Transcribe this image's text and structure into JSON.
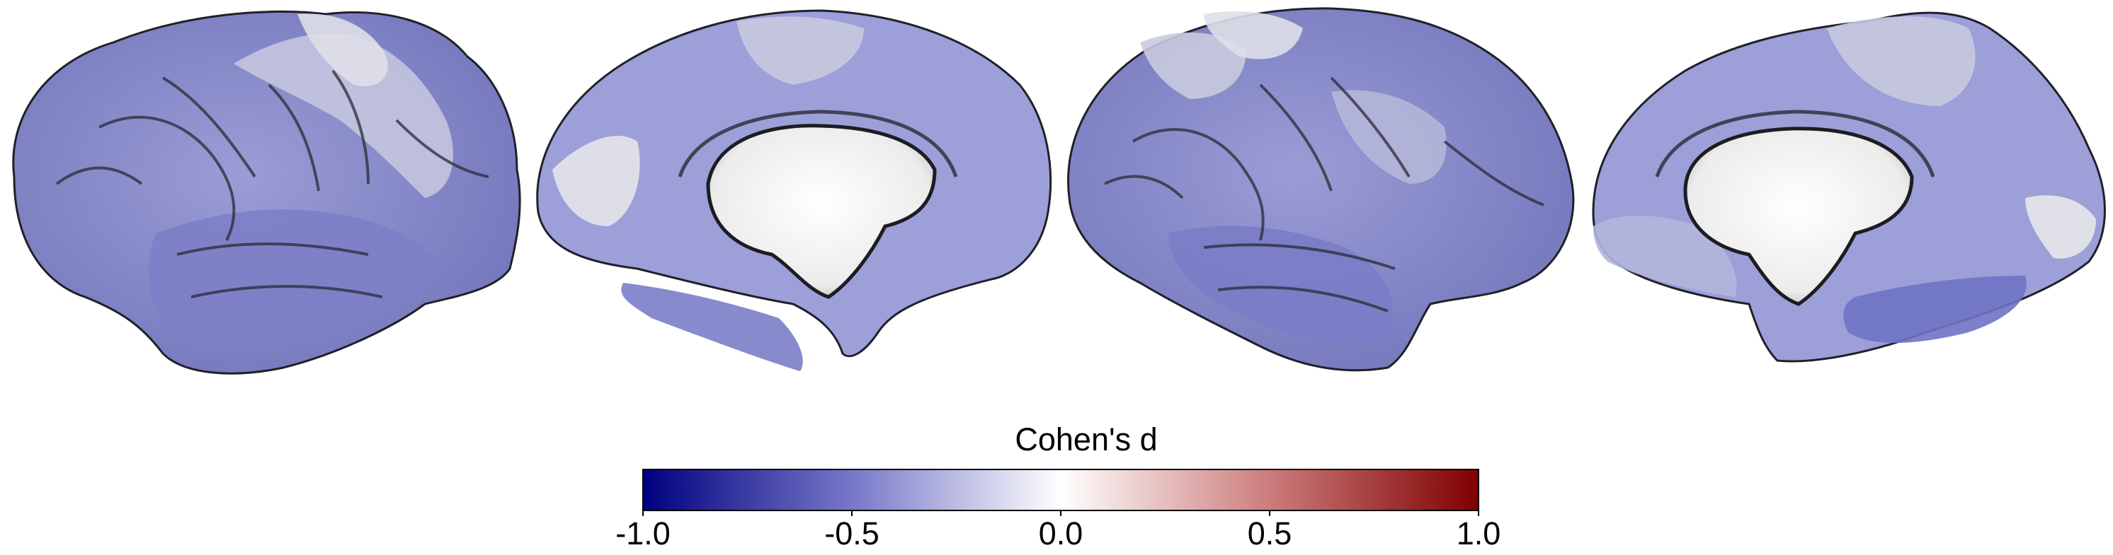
{
  "figure": {
    "views": [
      {
        "name": "left-hemisphere-lateral"
      },
      {
        "name": "left-hemisphere-medial"
      },
      {
        "name": "right-hemisphere-lateral"
      },
      {
        "name": "right-hemisphere-medial"
      }
    ]
  },
  "colorbar": {
    "title": "Cohen's d",
    "min": -1.0,
    "max": 1.0,
    "ticks": [
      "-1.0",
      "-0.5",
      "0.0",
      "0.5",
      "1.0"
    ],
    "colors": {
      "negative": "#00007f",
      "mid_negative": "#8f90d4",
      "zero": "#ffffff",
      "mid_positive": "#d08a8a",
      "positive": "#7f0000"
    }
  },
  "colors": {
    "surface_negative_light": "#b4b6de",
    "surface_negative": "#8a8dcf",
    "surface_negative_strong": "#6f73c4",
    "surface_white": "#f4f4f4",
    "outline": "#202028"
  }
}
